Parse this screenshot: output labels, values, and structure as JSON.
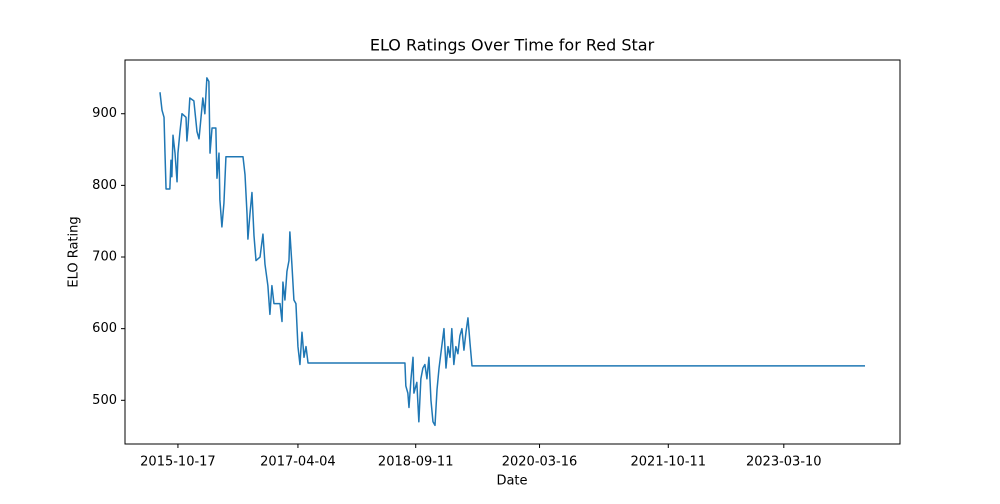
{
  "chart_data": {
    "type": "line",
    "title": "ELO Ratings Over Time for Red Star",
    "x_label": "Date",
    "y_label": "ELO Rating",
    "x": [
      "2015-07-29",
      "2015-08-07",
      "2015-08-16",
      "2015-08-20",
      "2015-08-25",
      "2015-09-11",
      "2015-09-16",
      "2015-09-20",
      "2015-09-25",
      "2015-10-04",
      "2015-10-13",
      "2015-10-17",
      "2015-10-26",
      "2015-11-04",
      "2015-11-22",
      "2015-11-26",
      "2015-12-01",
      "2015-12-09",
      "2015-12-27",
      "2016-01-10",
      "2016-01-19",
      "2016-01-28",
      "2016-02-05",
      "2016-02-14",
      "2016-02-23",
      "2016-03-03",
      "2016-03-08",
      "2016-03-17",
      "2016-04-03",
      "2016-04-08",
      "2016-04-17",
      "2016-04-21",
      "2016-04-30",
      "2016-05-09",
      "2016-05-18",
      "2016-08-02",
      "2016-08-11",
      "2016-08-20",
      "2016-08-24",
      "2016-09-02",
      "2016-09-11",
      "2016-09-20",
      "2016-09-29",
      "2016-10-17",
      "2016-10-30",
      "2016-11-08",
      "2016-11-21",
      "2016-11-30",
      "2016-12-09",
      "2016-12-18",
      "2017-01-14",
      "2017-01-23",
      "2017-01-27",
      "2017-02-05",
      "2017-02-14",
      "2017-02-23",
      "2017-02-27",
      "2017-03-08",
      "2017-03-17",
      "2017-03-26",
      "2017-04-04",
      "2017-04-13",
      "2017-04-22",
      "2017-05-01",
      "2017-05-10",
      "2017-05-19",
      "2018-07-25",
      "2018-07-29",
      "2018-08-07",
      "2018-08-12",
      "2018-08-21",
      "2018-08-30",
      "2018-09-03",
      "2018-09-16",
      "2018-09-25",
      "2018-10-04",
      "2018-10-13",
      "2018-10-22",
      "2018-10-31",
      "2018-11-09",
      "2018-11-18",
      "2018-11-27",
      "2018-12-06",
      "2018-12-15",
      "2018-12-24",
      "2019-01-15",
      "2019-01-24",
      "2019-02-02",
      "2019-02-11",
      "2019-02-19",
      "2019-02-28",
      "2019-03-09",
      "2019-03-18",
      "2019-03-27",
      "2019-04-05",
      "2019-04-14",
      "2019-04-23",
      "2019-05-02",
      "2019-05-11",
      "2019-05-20",
      "2024-03-06"
    ],
    "series": [
      {
        "color": "#1f77b4",
        "values": [
          930,
          905,
          895,
          848,
          795,
          795,
          835,
          812,
          870,
          845,
          805,
          845,
          875,
          900,
          895,
          862,
          880,
          922,
          918,
          875,
          865,
          895,
          922,
          900,
          950,
          945,
          845,
          880,
          880,
          810,
          845,
          780,
          742,
          775,
          840,
          840,
          815,
          760,
          725,
          760,
          790,
          730,
          695,
          700,
          732,
          690,
          660,
          620,
          660,
          635,
          635,
          610,
          665,
          640,
          680,
          695,
          735,
          690,
          640,
          635,
          575,
          550,
          595,
          560,
          575,
          552,
          552,
          520,
          510,
          490,
          530,
          560,
          510,
          525,
          470,
          530,
          545,
          550,
          530,
          560,
          500,
          470,
          465,
          515,
          545,
          600,
          545,
          575,
          560,
          600,
          550,
          575,
          565,
          590,
          600,
          570,
          595,
          615,
          580,
          548,
          548
        ]
      }
    ],
    "xlim": [
      "2015-02-23",
      "2024-08-09"
    ],
    "xticks": [
      "2015-10-17",
      "2017-04-04",
      "2018-09-11",
      "2020-03-16",
      "2021-10-11",
      "2023-03-10"
    ],
    "ylim": [
      439,
      975
    ],
    "yticks": [
      500,
      600,
      700,
      800,
      900
    ]
  }
}
